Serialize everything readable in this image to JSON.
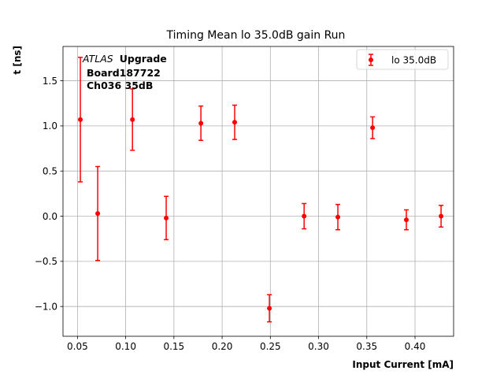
{
  "chart_data": {
    "type": "scatter",
    "title": "Timing Mean lo 35.0dB gain Run",
    "xlabel": "Input Current [mA]",
    "ylabel": "t [ns]",
    "xlim": [
      0.035,
      0.44
    ],
    "ylim": [
      -1.33,
      1.88
    ],
    "xticks": [
      0.05,
      0.1,
      0.15,
      0.2,
      0.25,
      0.3,
      0.35,
      0.4
    ],
    "xtick_labels": [
      "0.05",
      "0.10",
      "0.15",
      "0.20",
      "0.25",
      "0.30",
      "0.35",
      "0.40"
    ],
    "yticks": [
      -1.0,
      -0.5,
      0.0,
      0.5,
      1.0,
      1.5
    ],
    "ytick_labels": [
      "−1.0",
      "−0.5",
      "0.0",
      "0.5",
      "1.0",
      "1.5"
    ],
    "grid": true,
    "legend_position": "top-right",
    "annotation": {
      "atlas": "ATLAS",
      "upgrade": "Upgrade",
      "line2": "Board187722",
      "line3": "Ch036 35dB"
    },
    "series": [
      {
        "name": "lo 35.0dB",
        "color": "#ff0000",
        "points": [
          {
            "x": 0.053,
            "y": 1.07,
            "yerr": 0.69
          },
          {
            "x": 0.071,
            "y": 0.03,
            "yerr": 0.52
          },
          {
            "x": 0.107,
            "y": 1.07,
            "yerr": 0.34
          },
          {
            "x": 0.142,
            "y": -0.02,
            "yerr": 0.24
          },
          {
            "x": 0.178,
            "y": 1.03,
            "yerr": 0.19
          },
          {
            "x": 0.213,
            "y": 1.04,
            "yerr": 0.19
          },
          {
            "x": 0.249,
            "y": -1.02,
            "yerr": 0.15
          },
          {
            "x": 0.285,
            "y": 0.0,
            "yerr": 0.14
          },
          {
            "x": 0.32,
            "y": -0.01,
            "yerr": 0.14
          },
          {
            "x": 0.356,
            "y": 0.98,
            "yerr": 0.12
          },
          {
            "x": 0.391,
            "y": -0.04,
            "yerr": 0.11
          },
          {
            "x": 0.427,
            "y": 0.0,
            "yerr": 0.12
          }
        ]
      }
    ]
  }
}
